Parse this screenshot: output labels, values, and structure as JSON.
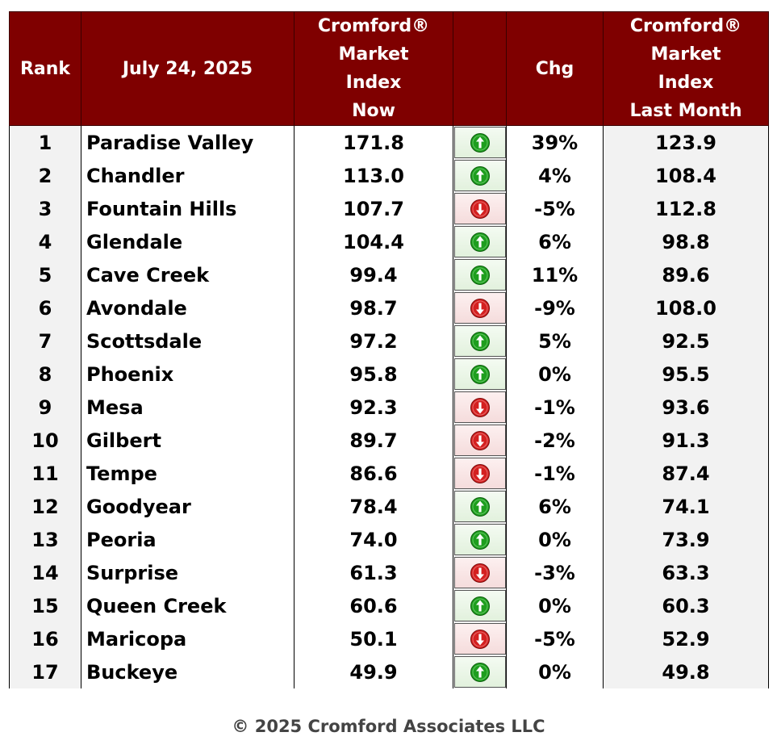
{
  "table": {
    "headers": {
      "rank": "Rank",
      "date": "July 24, 2025",
      "now": [
        "Cromford®",
        "Market",
        "Index",
        "Now"
      ],
      "arrow": "",
      "chg": "Chg",
      "last": [
        "Cromford®",
        "Market",
        "Index",
        "Last Month"
      ]
    },
    "rows": [
      {
        "rank": "1",
        "city": "Paradise Valley",
        "now": "171.8",
        "dir": "up",
        "chg": "39%",
        "last": "123.9"
      },
      {
        "rank": "2",
        "city": "Chandler",
        "now": "113.0",
        "dir": "up",
        "chg": "4%",
        "last": "108.4"
      },
      {
        "rank": "3",
        "city": "Fountain Hills",
        "now": "107.7",
        "dir": "down",
        "chg": "-5%",
        "last": "112.8"
      },
      {
        "rank": "4",
        "city": "Glendale",
        "now": "104.4",
        "dir": "up",
        "chg": "6%",
        "last": "98.8"
      },
      {
        "rank": "5",
        "city": "Cave Creek",
        "now": "99.4",
        "dir": "up",
        "chg": "11%",
        "last": "89.6"
      },
      {
        "rank": "6",
        "city": "Avondale",
        "now": "98.7",
        "dir": "down",
        "chg": "-9%",
        "last": "108.0"
      },
      {
        "rank": "7",
        "city": "Scottsdale",
        "now": "97.2",
        "dir": "up",
        "chg": "5%",
        "last": "92.5"
      },
      {
        "rank": "8",
        "city": "Phoenix",
        "now": "95.8",
        "dir": "up",
        "chg": "0%",
        "last": "95.5"
      },
      {
        "rank": "9",
        "city": "Mesa",
        "now": "92.3",
        "dir": "down",
        "chg": "-1%",
        "last": "93.6"
      },
      {
        "rank": "10",
        "city": "Gilbert",
        "now": "89.7",
        "dir": "down",
        "chg": "-2%",
        "last": "91.3"
      },
      {
        "rank": "11",
        "city": "Tempe",
        "now": "86.6",
        "dir": "down",
        "chg": "-1%",
        "last": "87.4"
      },
      {
        "rank": "12",
        "city": "Goodyear",
        "now": "78.4",
        "dir": "up",
        "chg": "6%",
        "last": "74.1"
      },
      {
        "rank": "13",
        "city": "Peoria",
        "now": "74.0",
        "dir": "up",
        "chg": "0%",
        "last": "73.9"
      },
      {
        "rank": "14",
        "city": "Surprise",
        "now": "61.3",
        "dir": "down",
        "chg": "-3%",
        "last": "63.3"
      },
      {
        "rank": "15",
        "city": "Queen Creek",
        "now": "60.6",
        "dir": "up",
        "chg": "0%",
        "last": "60.3"
      },
      {
        "rank": "16",
        "city": "Maricopa",
        "now": "50.1",
        "dir": "down",
        "chg": "-5%",
        "last": "52.9"
      },
      {
        "rank": "17",
        "city": "Buckeye",
        "now": "49.9",
        "dir": "up",
        "chg": "0%",
        "last": "49.8"
      }
    ]
  },
  "icons": {
    "up": "green-up-arrow-icon",
    "down": "red-down-arrow-icon"
  },
  "colors": {
    "header_bg": "#7f0000",
    "up": "#1e9e1e",
    "down": "#d42020"
  },
  "footer": "© 2025 Cromford Associates LLC"
}
